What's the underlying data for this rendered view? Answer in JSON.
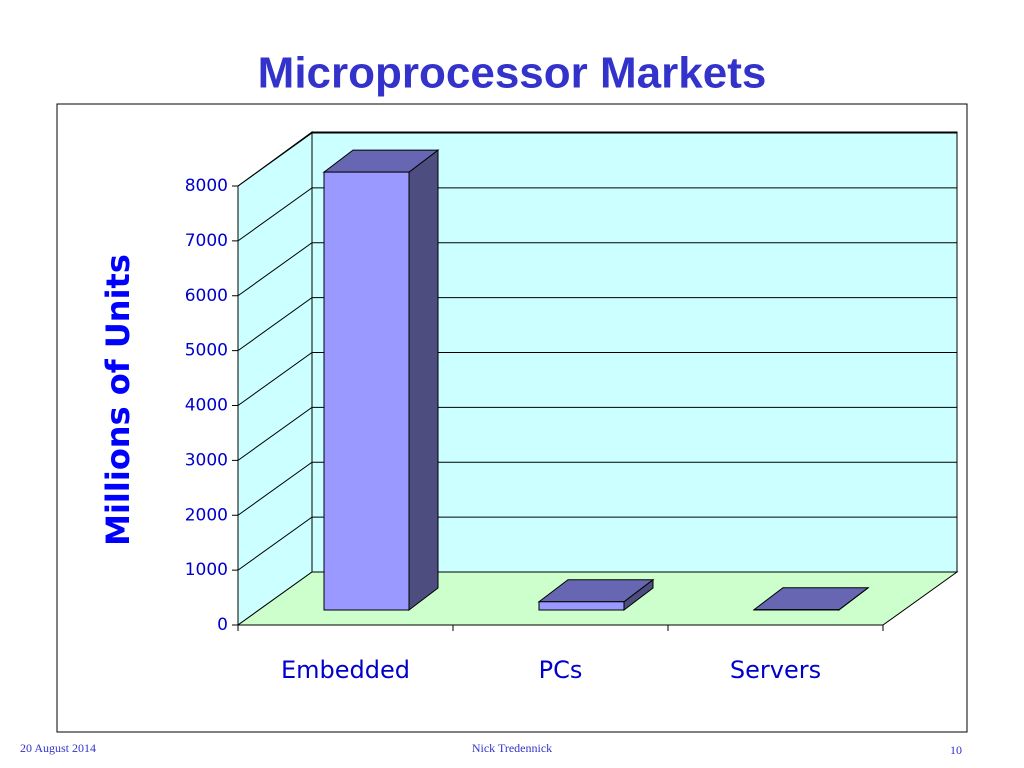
{
  "chart_data": {
    "type": "bar3d",
    "title": "Microprocessor Markets",
    "y_label": "Millions of Units",
    "categories": [
      "Embedded",
      "PCs",
      "Servers"
    ],
    "values": [
      7980,
      150,
      5
    ],
    "color": "#9999ff",
    "ylim": [
      0,
      8000
    ],
    "yticks": [
      0,
      1000,
      2000,
      3000,
      4000,
      5000,
      6000,
      7000,
      8000
    ],
    "grid": true
  },
  "footer": {
    "date": "20 August 2014",
    "author": "Nick Tredennick",
    "page": "10"
  }
}
